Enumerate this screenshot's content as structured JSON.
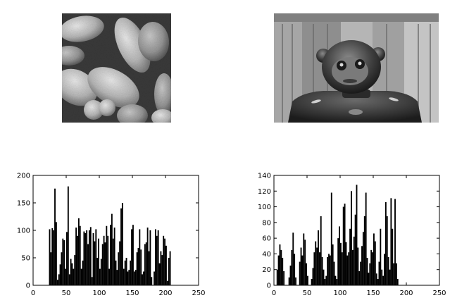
{
  "images": [
    {
      "name": "peppers-grayscale"
    },
    {
      "name": "robot-toy-grayscale"
    }
  ],
  "chart_data": [
    {
      "type": "bar",
      "xlim": [
        0,
        250
      ],
      "ylim": [
        0,
        200
      ],
      "xticks": [
        0,
        50,
        100,
        150,
        200,
        250
      ],
      "yticks": [
        0,
        50,
        100,
        150,
        200
      ],
      "grid": false,
      "color": "#000000",
      "x": [
        22,
        24,
        26,
        28,
        30,
        32,
        34,
        36,
        38,
        40,
        42,
        44,
        46,
        48,
        50,
        52,
        54,
        56,
        58,
        60,
        62,
        64,
        66,
        68,
        70,
        72,
        74,
        76,
        78,
        80,
        82,
        84,
        86,
        88,
        90,
        92,
        94,
        96,
        98,
        100,
        102,
        104,
        106,
        108,
        110,
        112,
        114,
        116,
        118,
        120,
        122,
        124,
        126,
        128,
        130,
        132,
        134,
        136,
        138,
        140,
        142,
        144,
        146,
        148,
        150,
        152,
        154,
        156,
        158,
        160,
        162,
        164,
        166,
        168,
        170,
        172,
        174,
        176,
        178,
        180,
        182,
        184,
        186,
        188,
        190,
        192,
        194,
        196,
        198,
        200,
        202,
        204,
        206,
        208,
        210
      ],
      "values": [
        0,
        102,
        60,
        104,
        100,
        176,
        115,
        10,
        20,
        38,
        60,
        85,
        82,
        30,
        97,
        180,
        20,
        48,
        40,
        30,
        55,
        105,
        90,
        122,
        108,
        30,
        45,
        98,
        95,
        100,
        75,
        100,
        106,
        15,
        95,
        80,
        102,
        50,
        85,
        30,
        48,
        75,
        90,
        78,
        108,
        90,
        30,
        110,
        130,
        85,
        105,
        45,
        28,
        60,
        80,
        140,
        150,
        30,
        45,
        50,
        25,
        28,
        45,
        102,
        110,
        25,
        28,
        60,
        68,
        102,
        65,
        20,
        25,
        75,
        78,
        105,
        62,
        100,
        15,
        0,
        25,
        102,
        90,
        100,
        40,
        62,
        55,
        90,
        85,
        72,
        8,
        50,
        62,
        0,
        0
      ]
    },
    {
      "type": "bar",
      "xlim": [
        0,
        250
      ],
      "ylim": [
        0,
        140
      ],
      "xticks": [
        0,
        50,
        100,
        150,
        200,
        250
      ],
      "yticks": [
        0,
        20,
        40,
        60,
        80,
        100,
        120,
        140
      ],
      "grid": false,
      "color": "#000000",
      "x": [
        2,
        4,
        6,
        8,
        10,
        12,
        14,
        16,
        18,
        20,
        22,
        24,
        26,
        28,
        30,
        32,
        34,
        36,
        38,
        40,
        42,
        44,
        46,
        48,
        50,
        52,
        54,
        56,
        58,
        60,
        62,
        64,
        66,
        68,
        70,
        72,
        74,
        76,
        78,
        80,
        82,
        84,
        86,
        88,
        90,
        92,
        94,
        96,
        98,
        100,
        102,
        104,
        106,
        108,
        110,
        112,
        114,
        116,
        118,
        120,
        122,
        124,
        126,
        128,
        130,
        132,
        134,
        136,
        138,
        140,
        142,
        144,
        146,
        148,
        150,
        152,
        154,
        156,
        158,
        160,
        162,
        164,
        166,
        168,
        170,
        172,
        174,
        176,
        178,
        180,
        182,
        184,
        186,
        188,
        190,
        192,
        194,
        196,
        198,
        200,
        202,
        204,
        206,
        208,
        210
      ],
      "values": [
        0,
        20,
        38,
        52,
        45,
        35,
        18,
        0,
        0,
        0,
        10,
        25,
        45,
        67,
        40,
        10,
        0,
        0,
        30,
        48,
        38,
        66,
        58,
        28,
        12,
        0,
        0,
        8,
        22,
        42,
        56,
        48,
        70,
        42,
        88,
        36,
        20,
        8,
        12,
        36,
        40,
        38,
        118,
        52,
        30,
        12,
        8,
        60,
        75,
        54,
        42,
        100,
        104,
        55,
        38,
        42,
        72,
        120,
        45,
        62,
        90,
        128,
        48,
        18,
        30,
        50,
        68,
        88,
        118,
        35,
        16,
        28,
        45,
        42,
        66,
        56,
        15,
        8,
        30,
        72,
        20,
        12,
        40,
        106,
        88,
        36,
        20,
        111,
        72,
        28,
        110,
        28,
        8,
        0,
        0,
        0,
        0,
        0,
        0,
        0,
        0,
        0,
        0,
        0,
        0
      ]
    }
  ]
}
